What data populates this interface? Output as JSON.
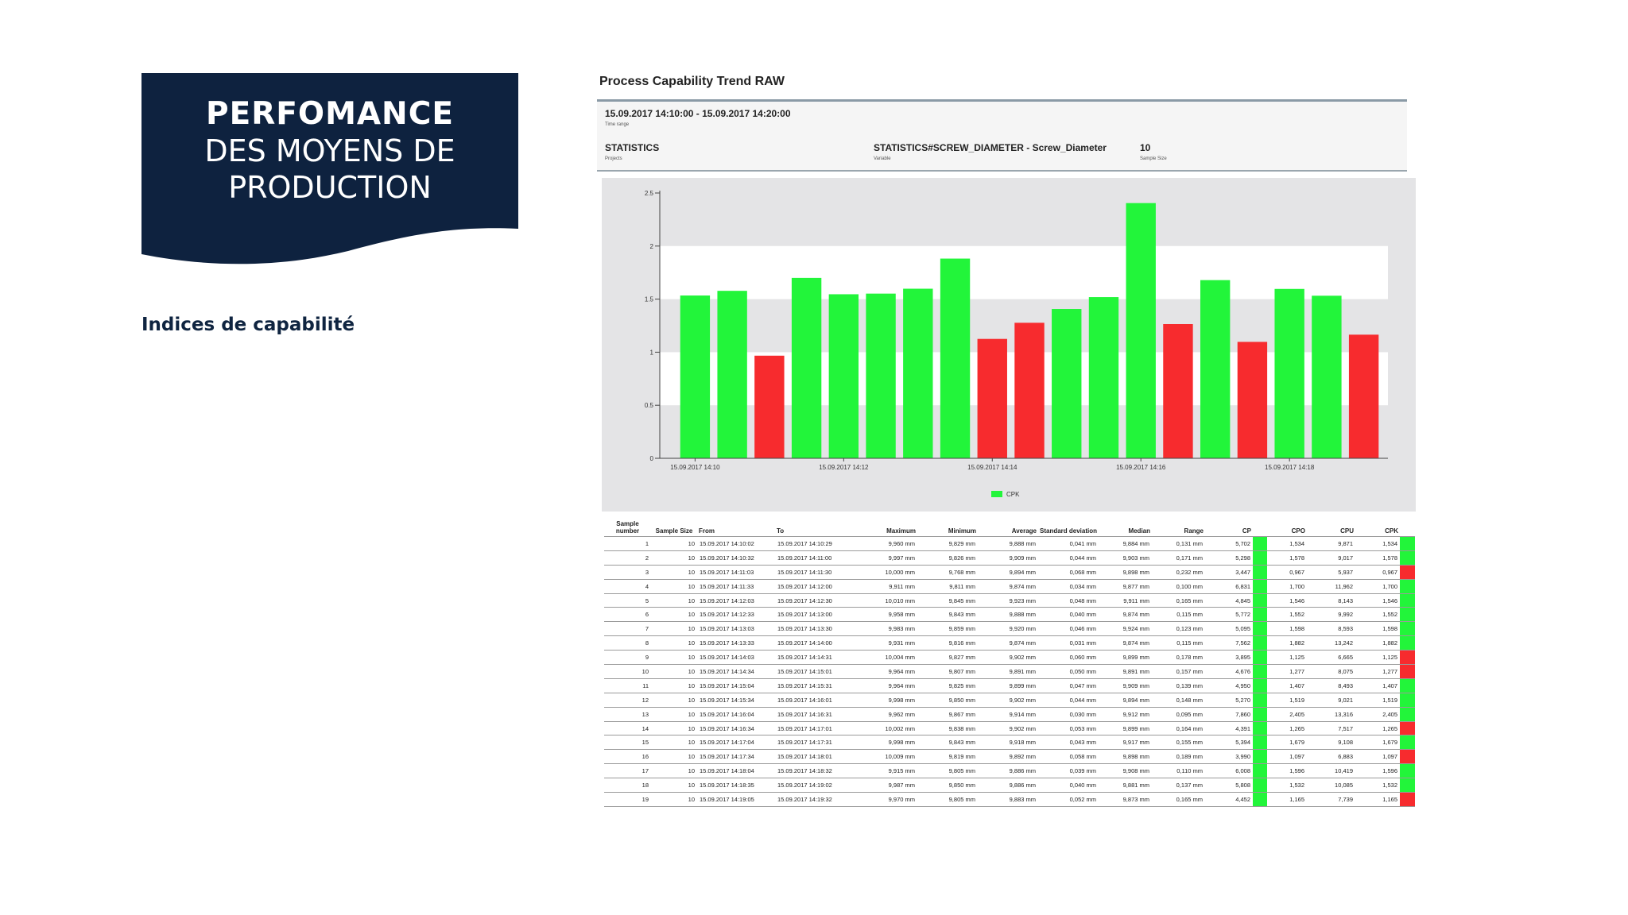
{
  "banner": {
    "line1": "PERFOMANCE",
    "line2": "DES MOYENS DE",
    "line3": "PRODUCTION",
    "bg_color": "#0e223f"
  },
  "subtitle": "Indices de capabilité",
  "report": {
    "title": "Process Capability Trend RAW",
    "time_range_value": "15.09.2017 14:10:00 - 15.09.2017 14:20:00",
    "time_range_label": "Time range",
    "projects_value": "STATISTICS",
    "projects_label": "Projects",
    "variable_value": "STATISTICS#SCREW_DIAMETER - Screw_Diameter",
    "variable_label": "Variable",
    "sample_size_value": "10",
    "sample_size_label": "Sample Size"
  },
  "chart_data": {
    "type": "bar",
    "series": [
      {
        "name": "CPK",
        "values": [
          1.534,
          1.578,
          0.967,
          1.7,
          1.546,
          1.552,
          1.598,
          1.882,
          1.125,
          1.277,
          1.407,
          1.519,
          2.405,
          1.265,
          1.679,
          1.097,
          1.596,
          1.532,
          1.165
        ]
      }
    ],
    "threshold": 1.33,
    "colors": {
      "ok": "#22f53a",
      "bad": "#f72b2e",
      "band": "#ffffff",
      "background": "#e4e4e6"
    },
    "ylim": [
      0,
      2.5
    ],
    "yticks": [
      "0",
      "0.5",
      "1",
      "1.5",
      "2",
      "2.5"
    ],
    "xtick_labels": [
      "15.09.2017 14:10",
      "15.09.2017 14:12",
      "15.09.2017 14:14",
      "15.09.2017 14:16",
      "15.09.2017 14:18"
    ],
    "xtick_positions": [
      1,
      5,
      9,
      13,
      17
    ],
    "legend": "bottom"
  },
  "table": {
    "headers": [
      "Sample number",
      "Sample Size",
      "From",
      "To",
      "Maximum",
      "Minimum",
      "Average",
      "Standard deviation",
      "Median",
      "Range",
      "CP",
      "",
      "CPO",
      "CPU",
      "CPK",
      ""
    ],
    "rows": [
      [
        "1",
        "10",
        "15.09.2017 14:10:02",
        "15.09.2017 14:10:29",
        "9,960 mm",
        "9,829 mm",
        "9,888 mm",
        "0,041 mm",
        "9,884 mm",
        "0,131 mm",
        "5,702",
        "1,534",
        "9,871",
        "1,534"
      ],
      [
        "2",
        "10",
        "15.09.2017 14:10:32",
        "15.09.2017 14:11:00",
        "9,997 mm",
        "9,826 mm",
        "9,909 mm",
        "0,044 mm",
        "9,903 mm",
        "0,171 mm",
        "5,298",
        "1,578",
        "9,017",
        "1,578"
      ],
      [
        "3",
        "10",
        "15.09.2017 14:11:03",
        "15.09.2017 14:11:30",
        "10,000 mm",
        "9,768 mm",
        "9,894 mm",
        "0,068 mm",
        "9,898 mm",
        "0,232 mm",
        "3,447",
        "0,967",
        "5,937",
        "0,967"
      ],
      [
        "4",
        "10",
        "15.09.2017 14:11:33",
        "15.09.2017 14:12:00",
        "9,911 mm",
        "9,811 mm",
        "9,874 mm",
        "0,034 mm",
        "9,877 mm",
        "0,100 mm",
        "6,831",
        "1,700",
        "11,962",
        "1,700"
      ],
      [
        "5",
        "10",
        "15.09.2017 14:12:03",
        "15.09.2017 14:12:30",
        "10,010 mm",
        "9,845 mm",
        "9,923 mm",
        "0,048 mm",
        "9,911 mm",
        "0,165 mm",
        "4,845",
        "1,546",
        "8,143",
        "1,546"
      ],
      [
        "6",
        "10",
        "15.09.2017 14:12:33",
        "15.09.2017 14:13:00",
        "9,958 mm",
        "9,843 mm",
        "9,888 mm",
        "0,040 mm",
        "9,874 mm",
        "0,115 mm",
        "5,772",
        "1,552",
        "9,992",
        "1,552"
      ],
      [
        "7",
        "10",
        "15.09.2017 14:13:03",
        "15.09.2017 14:13:30",
        "9,983 mm",
        "9,859 mm",
        "9,920 mm",
        "0,046 mm",
        "9,924 mm",
        "0,123 mm",
        "5,095",
        "1,598",
        "8,593",
        "1,598"
      ],
      [
        "8",
        "10",
        "15.09.2017 14:13:33",
        "15.09.2017 14:14:00",
        "9,931 mm",
        "9,816 mm",
        "9,874 mm",
        "0,031 mm",
        "9,874 mm",
        "0,115 mm",
        "7,562",
        "1,882",
        "13,242",
        "1,882"
      ],
      [
        "9",
        "10",
        "15.09.2017 14:14:03",
        "15.09.2017 14:14:31",
        "10,004 mm",
        "9,827 mm",
        "9,902 mm",
        "0,060 mm",
        "9,899 mm",
        "0,178 mm",
        "3,895",
        "1,125",
        "6,665",
        "1,125"
      ],
      [
        "10",
        "10",
        "15.09.2017 14:14:34",
        "15.09.2017 14:15:01",
        "9,964 mm",
        "9,807 mm",
        "9,891 mm",
        "0,050 mm",
        "9,891 mm",
        "0,157 mm",
        "4,676",
        "1,277",
        "8,075",
        "1,277"
      ],
      [
        "11",
        "10",
        "15.09.2017 14:15:04",
        "15.09.2017 14:15:31",
        "9,964 mm",
        "9,825 mm",
        "9,899 mm",
        "0,047 mm",
        "9,909 mm",
        "0,139 mm",
        "4,950",
        "1,407",
        "8,493",
        "1,407"
      ],
      [
        "12",
        "10",
        "15.09.2017 14:15:34",
        "15.09.2017 14:16:01",
        "9,998 mm",
        "9,850 mm",
        "9,902 mm",
        "0,044 mm",
        "9,894 mm",
        "0,148 mm",
        "5,270",
        "1,519",
        "9,021",
        "1,519"
      ],
      [
        "13",
        "10",
        "15.09.2017 14:16:04",
        "15.09.2017 14:16:31",
        "9,962 mm",
        "9,867 mm",
        "9,914 mm",
        "0,030 mm",
        "9,912 mm",
        "0,095 mm",
        "7,860",
        "2,405",
        "13,316",
        "2,405"
      ],
      [
        "14",
        "10",
        "15.09.2017 14:16:34",
        "15.09.2017 14:17:01",
        "10,002 mm",
        "9,838 mm",
        "9,902 mm",
        "0,053 mm",
        "9,899 mm",
        "0,164 mm",
        "4,391",
        "1,265",
        "7,517",
        "1,265"
      ],
      [
        "15",
        "10",
        "15.09.2017 14:17:04",
        "15.09.2017 14:17:31",
        "9,998 mm",
        "9,843 mm",
        "9,918 mm",
        "0,043 mm",
        "9,917 mm",
        "0,155 mm",
        "5,394",
        "1,679",
        "9,108",
        "1,679"
      ],
      [
        "16",
        "10",
        "15.09.2017 14:17:34",
        "15.09.2017 14:18:01",
        "10,009 mm",
        "9,819 mm",
        "9,892 mm",
        "0,058 mm",
        "9,898 mm",
        "0,189 mm",
        "3,990",
        "1,097",
        "6,883",
        "1,097"
      ],
      [
        "17",
        "10",
        "15.09.2017 14:18:04",
        "15.09.2017 14:18:32",
        "9,915 mm",
        "9,805 mm",
        "9,886 mm",
        "0,039 mm",
        "9,908 mm",
        "0,110 mm",
        "6,008",
        "1,596",
        "10,419",
        "1,596"
      ],
      [
        "18",
        "10",
        "15.09.2017 14:18:35",
        "15.09.2017 14:19:02",
        "9,987 mm",
        "9,850 mm",
        "9,886 mm",
        "0,040 mm",
        "9,881 mm",
        "0,137 mm",
        "5,808",
        "1,532",
        "10,085",
        "1,532"
      ],
      [
        "19",
        "10",
        "15.09.2017 14:19:05",
        "15.09.2017 14:19:32",
        "9,970 mm",
        "9,805 mm",
        "9,883 mm",
        "0,052 mm",
        "9,873 mm",
        "0,165 mm",
        "4,452",
        "1,165",
        "7,739",
        "1,165"
      ]
    ]
  }
}
